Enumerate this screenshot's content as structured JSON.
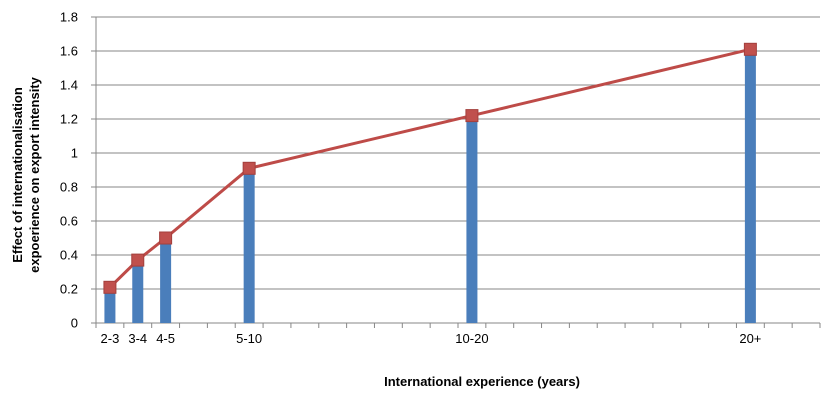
{
  "chart_data": {
    "type": "bar",
    "title": "",
    "xlabel": "International experience (years)",
    "ylabel_lines": [
      "Effect of internationalisation",
      "expoerience on export intensity"
    ],
    "ylim": [
      0,
      1.8
    ],
    "ytick_values": [
      0,
      0.2,
      0.4,
      0.6,
      0.8,
      1,
      1.2,
      1.4,
      1.6,
      1.8
    ],
    "ytick_labels": [
      "0",
      "0.2",
      "0.4",
      "0.6",
      "0.8",
      "1",
      "1.2",
      "1.4",
      "1.6",
      "1.8"
    ],
    "x_minor_ticks": 26,
    "categories": [
      "2-3",
      "3-4",
      "4-5",
      "5-10",
      "10-20",
      "20+"
    ],
    "category_positions": [
      0,
      1,
      2,
      5,
      13,
      23
    ],
    "grid": {
      "horizontal": true,
      "vertical": false
    },
    "legend": "none",
    "series": [
      {
        "type": "bar",
        "color": "#4a7ebb",
        "values": [
          0.21,
          0.37,
          0.5,
          0.91,
          1.22,
          1.61
        ]
      },
      {
        "type": "line",
        "marker": "square",
        "color": "#be4b48",
        "marker_fill": "#c0504d",
        "values": [
          0.21,
          0.37,
          0.5,
          0.91,
          1.22,
          1.61
        ]
      }
    ]
  }
}
